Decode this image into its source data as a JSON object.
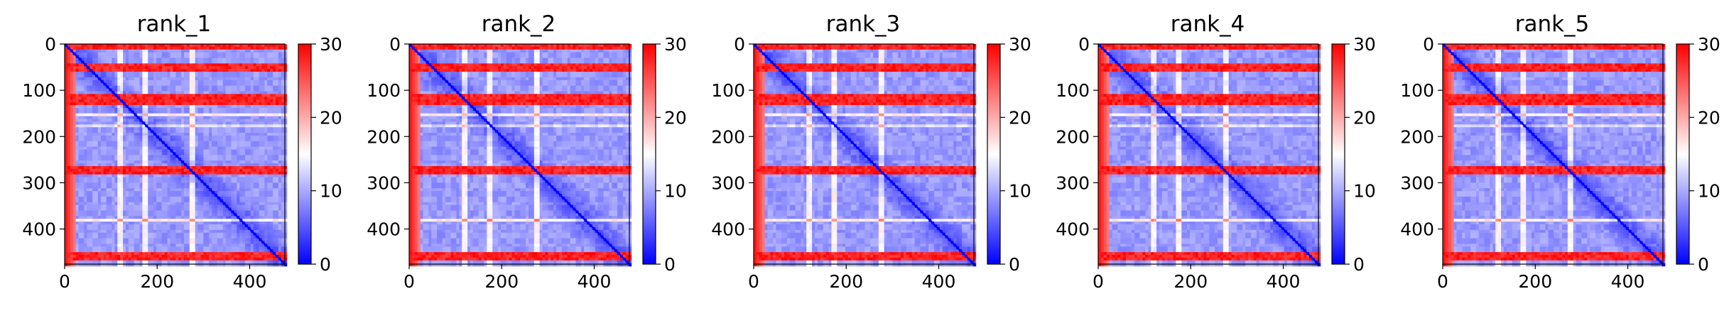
{
  "chart_data": {
    "type": "heatmap",
    "colormap": "bwr",
    "colors": {
      "low": "#0000ff",
      "mid": "#ffffff",
      "high": "#ff0000"
    },
    "panels": [
      {
        "title": "rank_1"
      },
      {
        "title": "rank_2"
      },
      {
        "title": "rank_3"
      },
      {
        "title": "rank_4"
      },
      {
        "title": "rank_5"
      }
    ],
    "matrix_size": 476,
    "x_ticks": [
      "0",
      "200",
      "400"
    ],
    "x_tick_values": [
      0,
      200,
      400
    ],
    "y_ticks": [
      "0",
      "100",
      "200",
      "300",
      "400"
    ],
    "y_tick_values": [
      0,
      100,
      200,
      300,
      400
    ],
    "xlim": [
      0,
      476
    ],
    "ylim": [
      476,
      0
    ],
    "colorbar": {
      "ticks": [
        "0",
        "10",
        "20",
        "30"
      ],
      "tick_values": [
        0,
        10,
        20,
        30
      ],
      "range": [
        0,
        30
      ]
    },
    "features": {
      "diagonal": "low values (blue) along main diagonal",
      "high_value_bands_approx_rows": [
        0,
        50,
        120,
        275,
        460
      ],
      "light_bands_approx": [
        120,
        175,
        275
      ]
    },
    "grid": false
  }
}
